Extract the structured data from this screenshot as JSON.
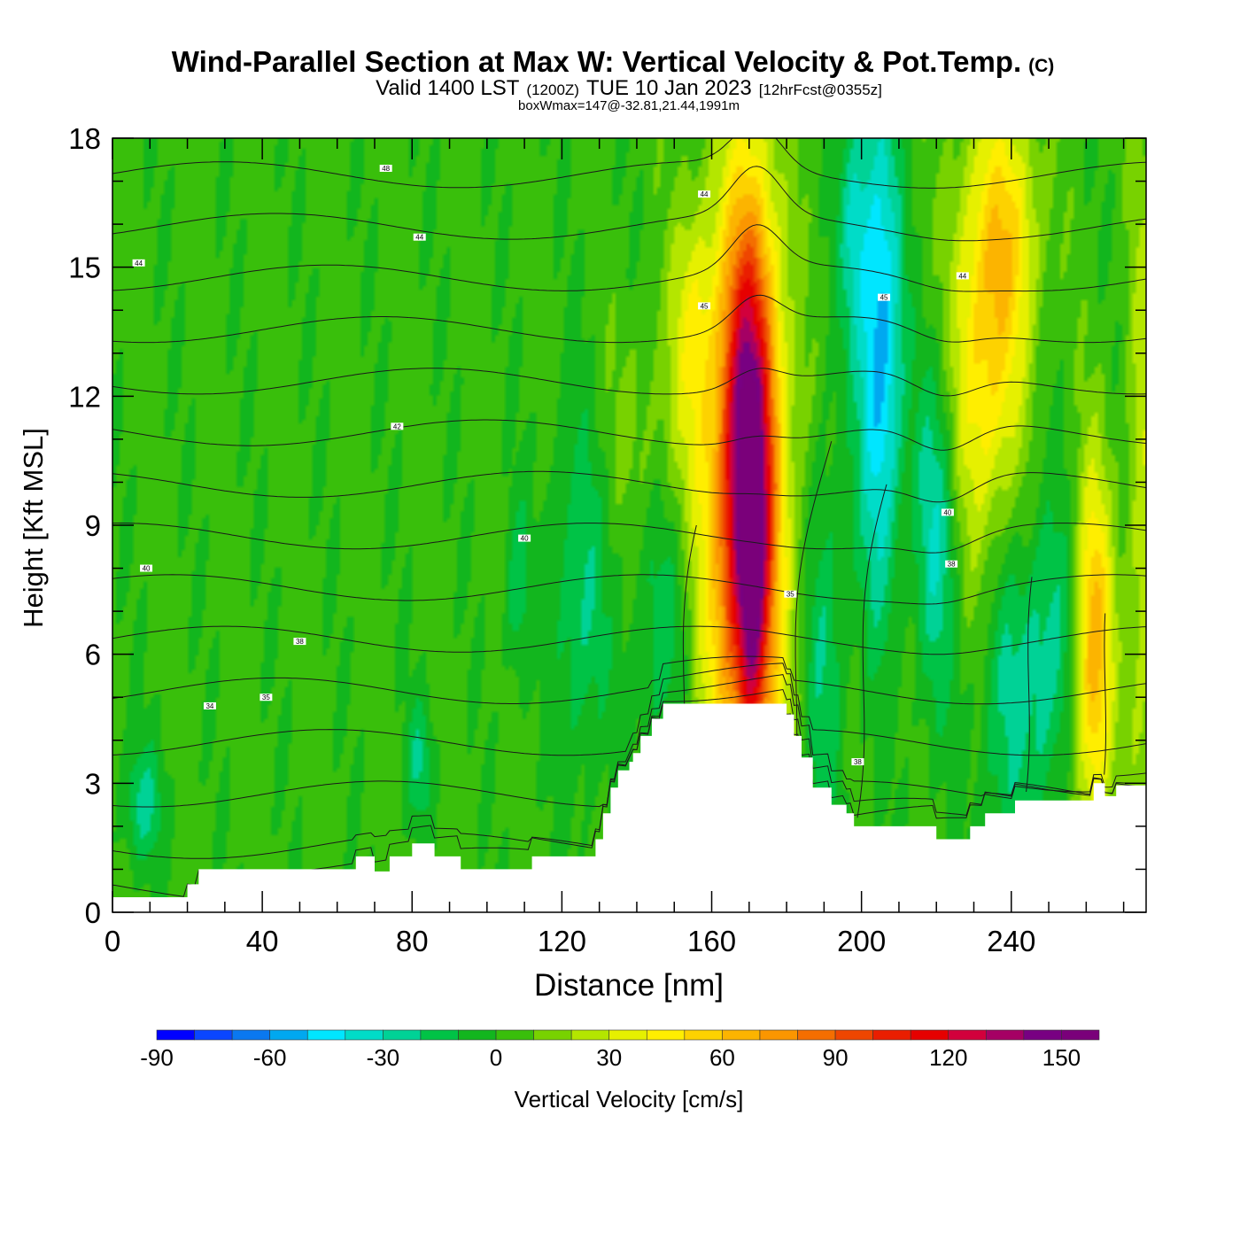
{
  "chart_data": {
    "type": "contour-cross-section",
    "title": "Wind-Parallel Section at Max W: Vertical Velocity & Pot.Temp.",
    "title_mark": "(C)",
    "subtitle_valid": "Valid 1400 LST",
    "subtitle_utc": "(1200Z)",
    "subtitle_date": "TUE 10 Jan 2023",
    "subtitle_fcst": "[12hrFcst@0355z]",
    "subtitle_box": "boxWmax=147@-32.81,21.44,1991m",
    "xlabel": "Distance [nm]",
    "ylabel": "Height [Kft MSL]",
    "xlim": [
      0,
      276
    ],
    "ylim": [
      0,
      18
    ],
    "xticks": [
      0,
      40,
      80,
      120,
      160,
      200,
      240
    ],
    "yticks": [
      0,
      3,
      6,
      9,
      12,
      15,
      18
    ],
    "colorbar": {
      "label": "Vertical Velocity [cm/s]",
      "min": -90,
      "max": 160,
      "step": 10,
      "tick_values": [
        -90,
        -60,
        -30,
        0,
        30,
        60,
        90,
        120,
        150
      ],
      "colors": [
        "#0000ff",
        "#0a46ff",
        "#0a78f0",
        "#00a8f0",
        "#00e6ff",
        "#00dcc8",
        "#00d296",
        "#00c346",
        "#12b61e",
        "#39bf0b",
        "#78d200",
        "#b4e600",
        "#e6f000",
        "#ffee00",
        "#fdd200",
        "#fcb400",
        "#fb9600",
        "#f46e00",
        "#ef4600",
        "#ea1e00",
        "#e60000",
        "#d2003c",
        "#a50064",
        "#780082",
        "#7a007a"
      ]
    },
    "terrain": [
      [
        0,
        0.35
      ],
      [
        20,
        0.35
      ],
      [
        20,
        0.65
      ],
      [
        23,
        0.65
      ],
      [
        23,
        1.0
      ],
      [
        65,
        1.0
      ],
      [
        65,
        1.3
      ],
      [
        70,
        1.3
      ],
      [
        70,
        0.95
      ],
      [
        74,
        0.95
      ],
      [
        74,
        1.3
      ],
      [
        80,
        1.3
      ],
      [
        80,
        1.6
      ],
      [
        86,
        1.6
      ],
      [
        86,
        1.3
      ],
      [
        93,
        1.3
      ],
      [
        93,
        1.0
      ],
      [
        112,
        1.0
      ],
      [
        112,
        1.3
      ],
      [
        129,
        1.3
      ],
      [
        129,
        1.7
      ],
      [
        131,
        1.7
      ],
      [
        131,
        2.3
      ],
      [
        133,
        2.3
      ],
      [
        133,
        2.9
      ],
      [
        135,
        2.9
      ],
      [
        135,
        3.3
      ],
      [
        138,
        3.3
      ],
      [
        138,
        3.5
      ],
      [
        139,
        3.5
      ],
      [
        139,
        3.7
      ],
      [
        141,
        3.7
      ],
      [
        141,
        4.1
      ],
      [
        144,
        4.1
      ],
      [
        144,
        4.5
      ],
      [
        147,
        4.5
      ],
      [
        147,
        4.85
      ],
      [
        180,
        4.85
      ],
      [
        180,
        4.6
      ],
      [
        182,
        4.6
      ],
      [
        182,
        4.1
      ],
      [
        184,
        4.1
      ],
      [
        184,
        3.6
      ],
      [
        187,
        3.6
      ],
      [
        187,
        2.9
      ],
      [
        192,
        2.9
      ],
      [
        192,
        2.5
      ],
      [
        196,
        2.5
      ],
      [
        196,
        2.3
      ],
      [
        198,
        2.3
      ],
      [
        198,
        2.0
      ],
      [
        220,
        2.0
      ],
      [
        220,
        1.7
      ],
      [
        229,
        1.7
      ],
      [
        229,
        2.0
      ],
      [
        233,
        2.0
      ],
      [
        233,
        2.3
      ],
      [
        241,
        2.3
      ],
      [
        241,
        2.6
      ],
      [
        262,
        2.6
      ],
      [
        262,
        3.0
      ],
      [
        265,
        3.0
      ],
      [
        265,
        2.7
      ],
      [
        268,
        2.7
      ],
      [
        268,
        2.95
      ],
      [
        276,
        2.95
      ]
    ],
    "w_features": [
      {
        "x": 170,
        "z": 11,
        "amp": 110,
        "sx": 5,
        "sz": 4.2
      },
      {
        "x": 168,
        "z": 8.5,
        "amp": 60,
        "sx": 9,
        "sz": 5
      },
      {
        "x": 171,
        "z": 6.5,
        "amp": 40,
        "sx": 2.5,
        "sz": 2.5
      },
      {
        "x": 233,
        "z": 13,
        "amp": 50,
        "sx": 7,
        "sz": 3.5
      },
      {
        "x": 240,
        "z": 16,
        "amp": 30,
        "sx": 6,
        "sz": 2
      },
      {
        "x": 262,
        "z": 6,
        "amp": 65,
        "sx": 3.5,
        "sz": 3
      },
      {
        "x": 205,
        "z": 13,
        "amp": -60,
        "sx": 4,
        "sz": 4
      },
      {
        "x": 220,
        "z": 9,
        "amp": -35,
        "sx": 4,
        "sz": 3
      },
      {
        "x": 250,
        "z": 6,
        "amp": -30,
        "sx": 5,
        "sz": 2.5
      },
      {
        "x": 198,
        "z": 16,
        "amp": -30,
        "sx": 3,
        "sz": 2
      },
      {
        "x": 125,
        "z": 7.5,
        "amp": -25,
        "sx": 5,
        "sz": 3
      },
      {
        "x": 108,
        "z": 7.5,
        "amp": -20,
        "sx": 2.5,
        "sz": 1.5
      },
      {
        "x": 147,
        "z": 7,
        "amp": -22,
        "sx": 6,
        "sz": 3
      },
      {
        "x": 190,
        "z": 6,
        "amp": -25,
        "sx": 4,
        "sz": 3.5
      },
      {
        "x": 238,
        "z": 5,
        "amp": -25,
        "sx": 5,
        "sz": 3
      },
      {
        "x": 8,
        "z": 2.5,
        "amp": -25,
        "sx": 4,
        "sz": 1
      },
      {
        "x": 82,
        "z": 3.5,
        "amp": -22,
        "sx": 2.5,
        "sz": 1
      },
      {
        "x": 145,
        "z": 11,
        "amp": 15,
        "sx": 10,
        "sz": 2
      },
      {
        "x": 155,
        "z": 14,
        "amp": 25,
        "sx": 4,
        "sz": 2
      },
      {
        "x": 275,
        "z": 9,
        "amp": 25,
        "sx": 3,
        "sz": 6
      }
    ],
    "theta_levels": [
      31,
      32,
      33,
      34,
      35,
      36,
      37,
      38,
      39,
      40,
      41,
      42,
      43,
      44,
      45,
      46,
      47,
      48
    ],
    "theta_labels": [
      {
        "x": 73,
        "z": 17.3,
        "text": "48"
      },
      {
        "x": 82,
        "z": 15.7,
        "text": "44"
      },
      {
        "x": 7,
        "z": 15.1,
        "text": "44"
      },
      {
        "x": 76,
        "z": 11.3,
        "text": "42"
      },
      {
        "x": 9,
        "z": 8,
        "text": "40"
      },
      {
        "x": 110,
        "z": 8.7,
        "text": "40"
      },
      {
        "x": 50,
        "z": 6.3,
        "text": "38"
      },
      {
        "x": 41,
        "z": 5,
        "text": "35"
      },
      {
        "x": 26,
        "z": 4.8,
        "text": "34"
      },
      {
        "x": 158,
        "z": 14.1,
        "text": "45"
      },
      {
        "x": 158,
        "z": 16.7,
        "text": "44"
      },
      {
        "x": 206,
        "z": 14.3,
        "text": "45"
      },
      {
        "x": 227,
        "z": 14.8,
        "text": "44"
      },
      {
        "x": 223,
        "z": 9.3,
        "text": "40"
      },
      {
        "x": 224,
        "z": 8.1,
        "text": "38"
      },
      {
        "x": 181,
        "z": 7.4,
        "text": "35"
      },
      {
        "x": 199,
        "z": 3.5,
        "text": "38"
      }
    ]
  }
}
